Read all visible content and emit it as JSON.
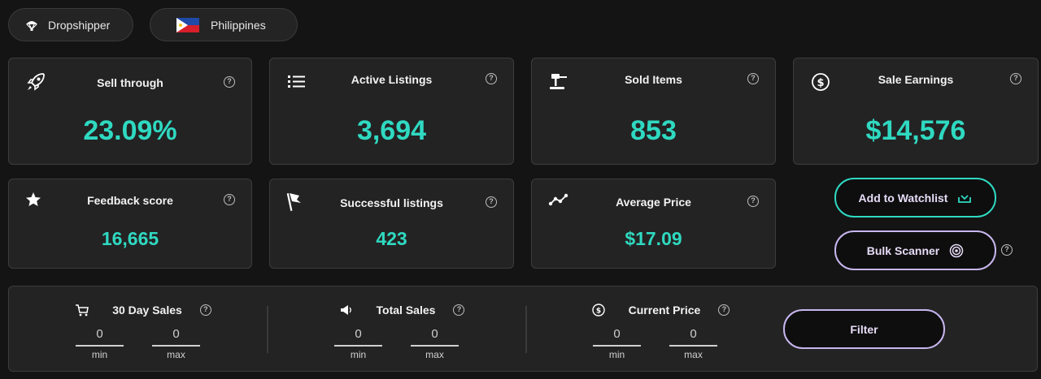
{
  "top_pills": {
    "mode": {
      "label": "Dropshipper",
      "icon": "parachute-icon"
    },
    "country": {
      "label": "Philippines",
      "icon": "philippines-flag-icon"
    }
  },
  "stats": {
    "sell_through": {
      "title": "Sell through",
      "value": "23.09%",
      "icon": "rocket-icon"
    },
    "active_listings": {
      "title": "Active Listings",
      "value": "3,694",
      "icon": "list-icon"
    },
    "sold_items": {
      "title": "Sold Items",
      "value": "853",
      "icon": "gavel-icon"
    },
    "sale_earnings": {
      "title": "Sale Earnings",
      "value": "$14,576",
      "icon": "dollar-circle-icon"
    },
    "feedback_score": {
      "title": "Feedback score",
      "value": "16,665",
      "icon": "star-icon"
    },
    "successful_listings": {
      "title": "Successful listings",
      "value": "423",
      "icon": "flag-icon"
    },
    "average_price": {
      "title": "Average Price",
      "value": "$17.09",
      "icon": "trend-line-icon"
    }
  },
  "help_glyph": "?",
  "actions": {
    "watchlist_label": "Add to Watchlist",
    "bulk_label": "Bulk Scanner"
  },
  "filters": {
    "sales_30": {
      "label": "30 Day Sales",
      "min": "0",
      "max": "0",
      "icon": "cart-icon"
    },
    "total_sales": {
      "label": "Total Sales",
      "min": "0",
      "max": "0",
      "icon": "megaphone-icon"
    },
    "current_price": {
      "label": "Current Price",
      "min": "0",
      "max": "0",
      "icon": "dollar-circle-icon"
    },
    "min_caption": "min",
    "max_caption": "max",
    "filter_label": "Filter"
  },
  "colors": {
    "accent_teal": "#2fd9c1",
    "accent_lavender": "#c8b6ef",
    "background": "#141414",
    "card": "#232323"
  }
}
